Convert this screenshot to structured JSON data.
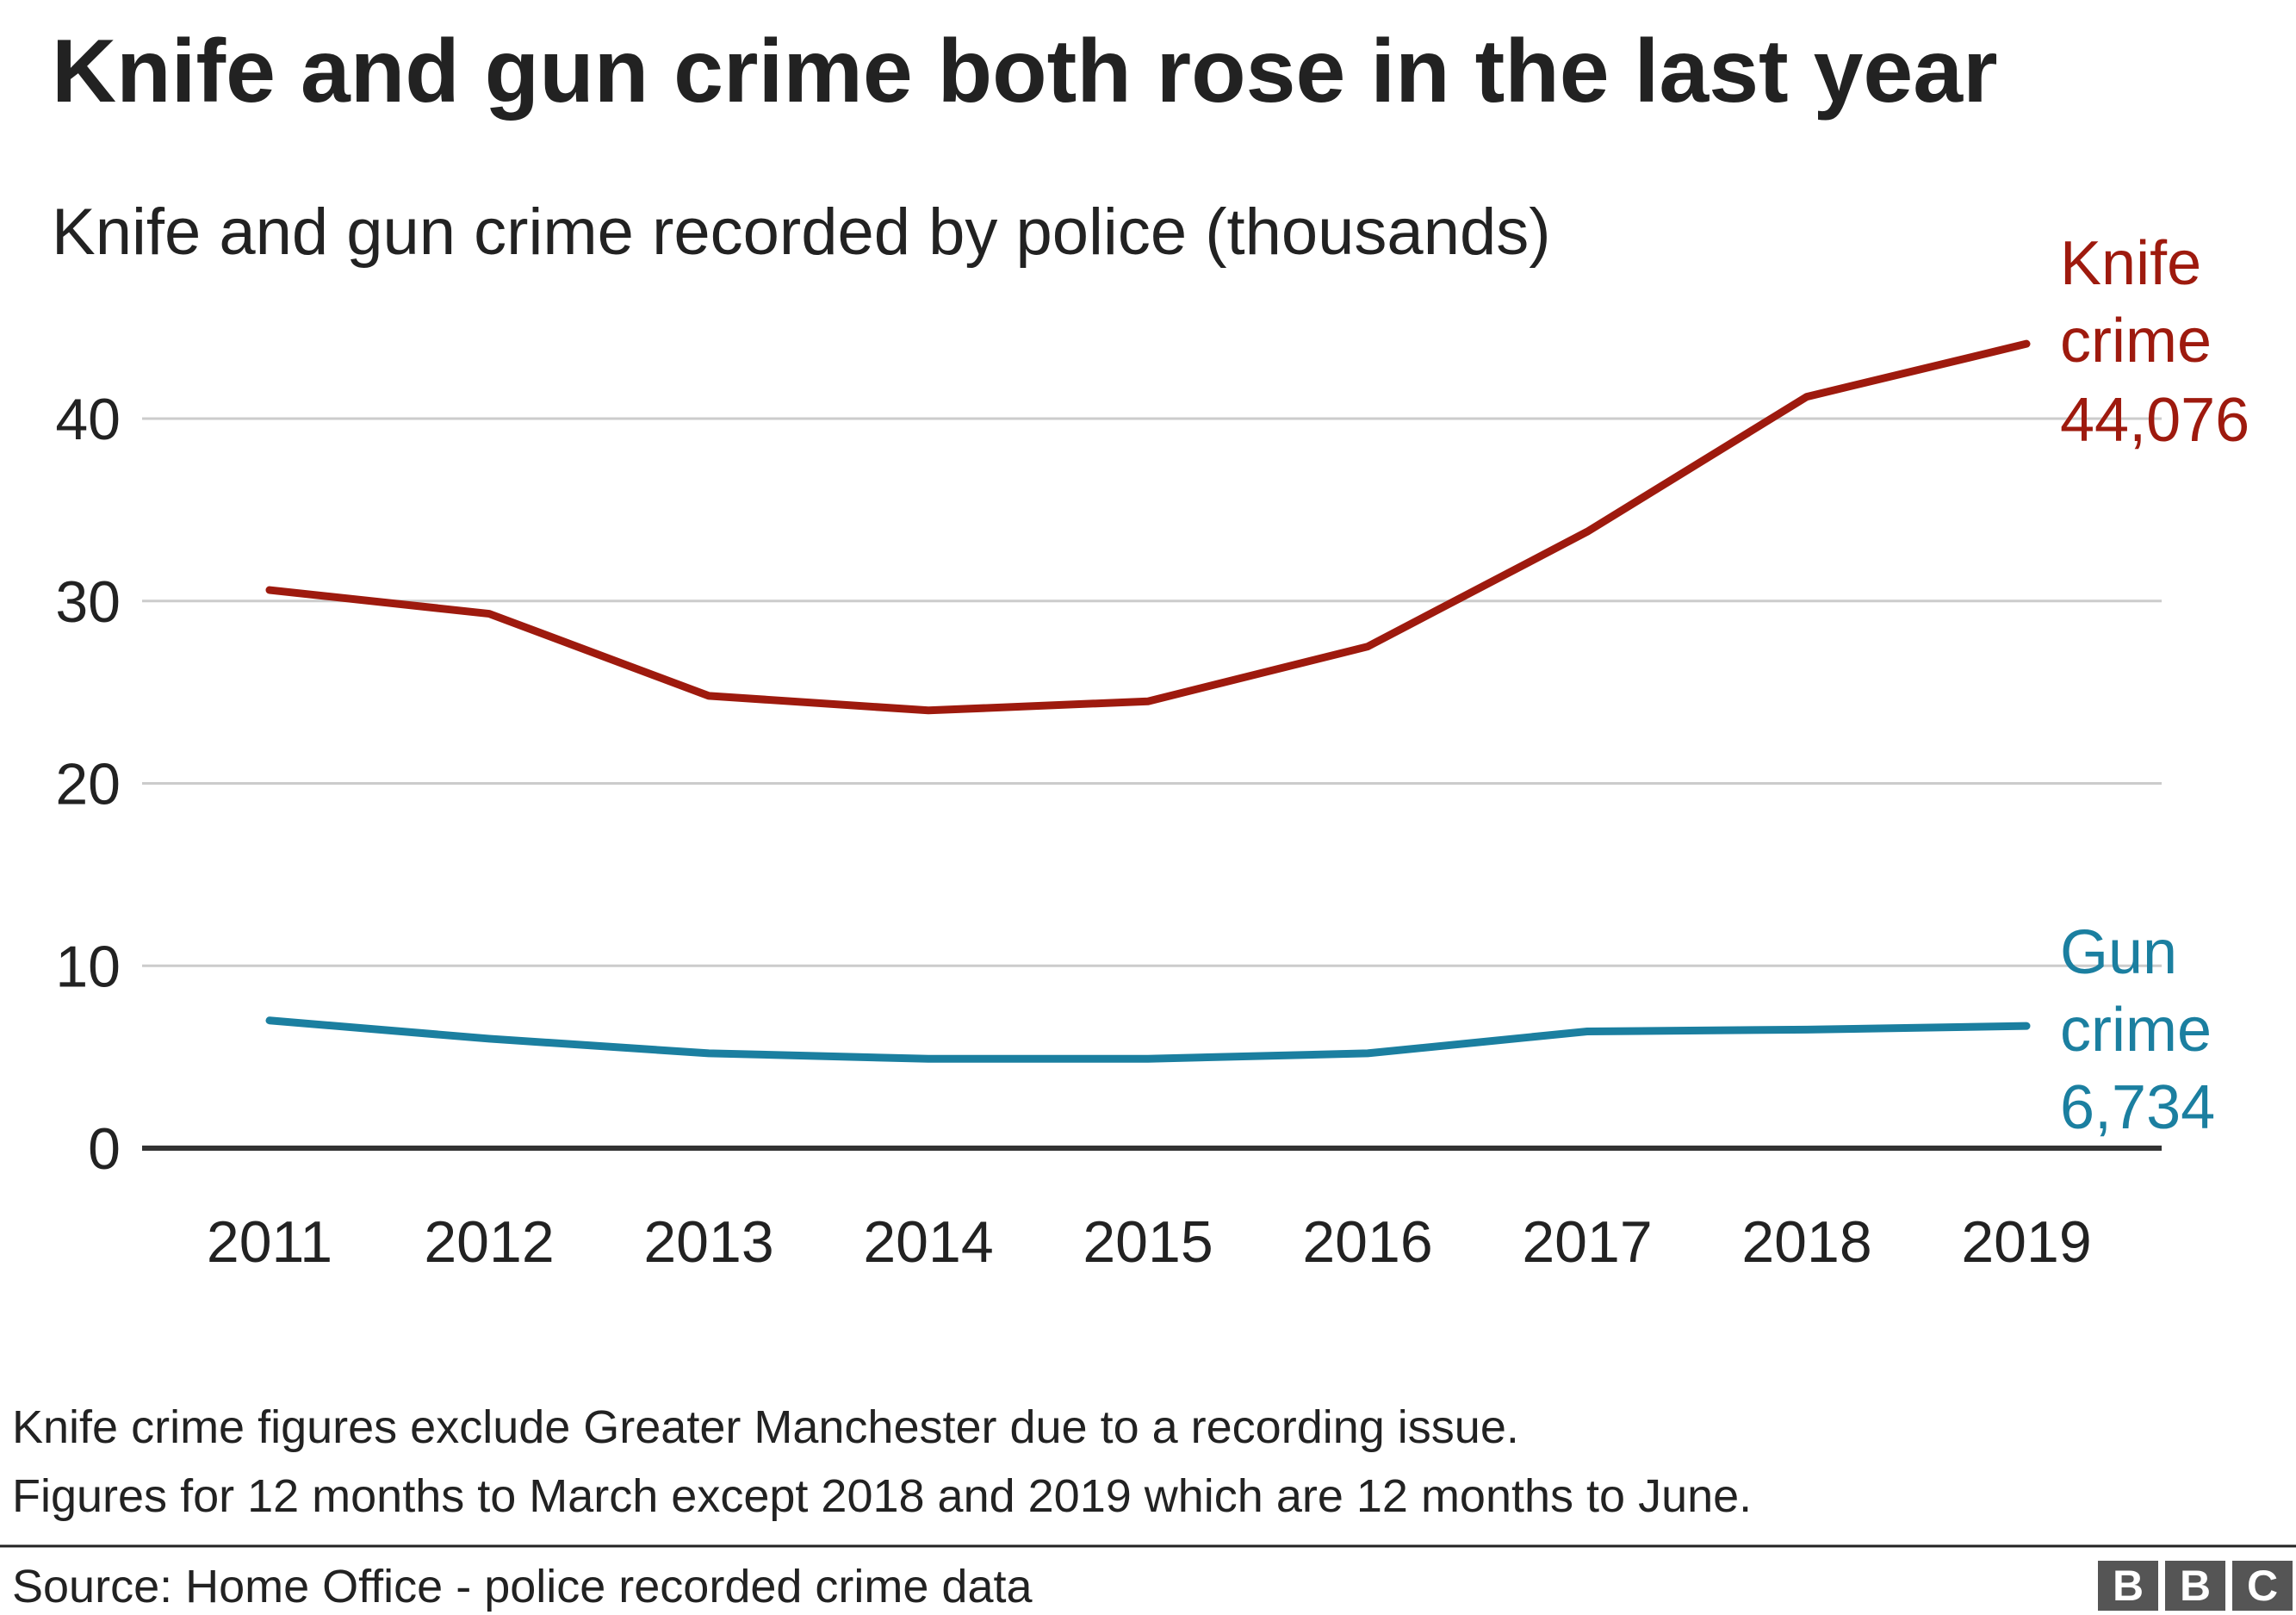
{
  "title": "Knife and gun crime both rose in the last year",
  "subtitle": "Knife and gun crime recorded by police (thousands)",
  "chart_data": {
    "type": "line",
    "x": [
      "2011",
      "2012",
      "2013",
      "2014",
      "2015",
      "2016",
      "2017",
      "2018",
      "2019"
    ],
    "ylim": [
      0,
      45
    ],
    "yticks": [
      0,
      10,
      20,
      30,
      40
    ],
    "grid": true,
    "series": [
      {
        "name": "Knife crime",
        "label_lines": [
          "Knife",
          "crime",
          "44,076"
        ],
        "color": "#9e1a0e",
        "values": [
          30.6,
          29.3,
          24.8,
          24.0,
          24.5,
          27.5,
          33.8,
          41.2,
          44.1
        ]
      },
      {
        "name": "Gun crime",
        "label_lines": [
          "Gun",
          "crime",
          "6,734"
        ],
        "color": "#1b7fa0",
        "values": [
          7.0,
          6.0,
          5.2,
          4.9,
          4.9,
          5.2,
          6.4,
          6.5,
          6.7
        ]
      }
    ]
  },
  "notes": [
    "Knife crime figures exclude Greater Manchester due to a recording issue.",
    "Figures for 12 months to March except 2018 and 2019 which are 12 months to June."
  ],
  "source": "Source: Home Office - police recorded crime data",
  "logo": {
    "letters": [
      "B",
      "B",
      "C"
    ]
  }
}
